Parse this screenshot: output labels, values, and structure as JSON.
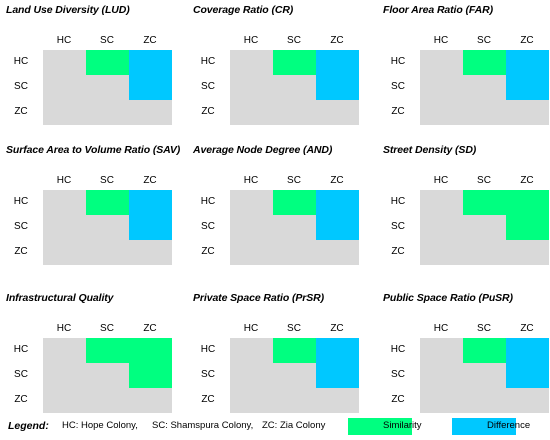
{
  "colors": {
    "similarity": "#00ff80",
    "difference": "#00c8ff",
    "neutral": "#d9d9d9"
  },
  "column_labels": [
    "HC",
    "SC",
    "ZC"
  ],
  "row_labels": [
    "HC",
    "SC",
    "ZC"
  ],
  "panels": [
    {
      "title": "Land Use Diversity (LUD)",
      "cells": {
        "hc-sc": "similarity",
        "hc-zc": "difference",
        "sc-zc": "difference"
      }
    },
    {
      "title": "Coverage Ratio (CR)",
      "cells": {
        "hc-sc": "similarity",
        "hc-zc": "difference",
        "sc-zc": "difference"
      }
    },
    {
      "title": "Floor Area Ratio (FAR)",
      "cells": {
        "hc-sc": "similarity",
        "hc-zc": "difference",
        "sc-zc": "difference"
      }
    },
    {
      "title": "Surface Area to Volume Ratio (SAV)",
      "cells": {
        "hc-sc": "similarity",
        "hc-zc": "difference",
        "sc-zc": "difference"
      }
    },
    {
      "title": "Average Node Degree (AND)",
      "cells": {
        "hc-sc": "similarity",
        "hc-zc": "difference",
        "sc-zc": "difference"
      }
    },
    {
      "title": "Street Density (SD)",
      "cells": {
        "hc-sc": "similarity",
        "hc-zc": "similarity",
        "sc-zc": "similarity"
      }
    },
    {
      "title": "Infrastructural Quality",
      "cells": {
        "hc-sc": "similarity",
        "hc-zc": "similarity",
        "sc-zc": "similarity"
      }
    },
    {
      "title": "Private Space Ratio (PrSR)",
      "cells": {
        "hc-sc": "similarity",
        "hc-zc": "difference",
        "sc-zc": "difference"
      }
    },
    {
      "title": "Public Space Ratio (PuSR)",
      "cells": {
        "hc-sc": "similarity",
        "hc-zc": "difference",
        "sc-zc": "difference"
      }
    }
  ],
  "legend": {
    "title": "Legend:",
    "items": [
      "HC: Hope Colony,",
      "SC: Shamspura Colony,",
      "ZC: Zia Colony"
    ],
    "similarity_label": "Similarity",
    "difference_label": "Difference"
  }
}
